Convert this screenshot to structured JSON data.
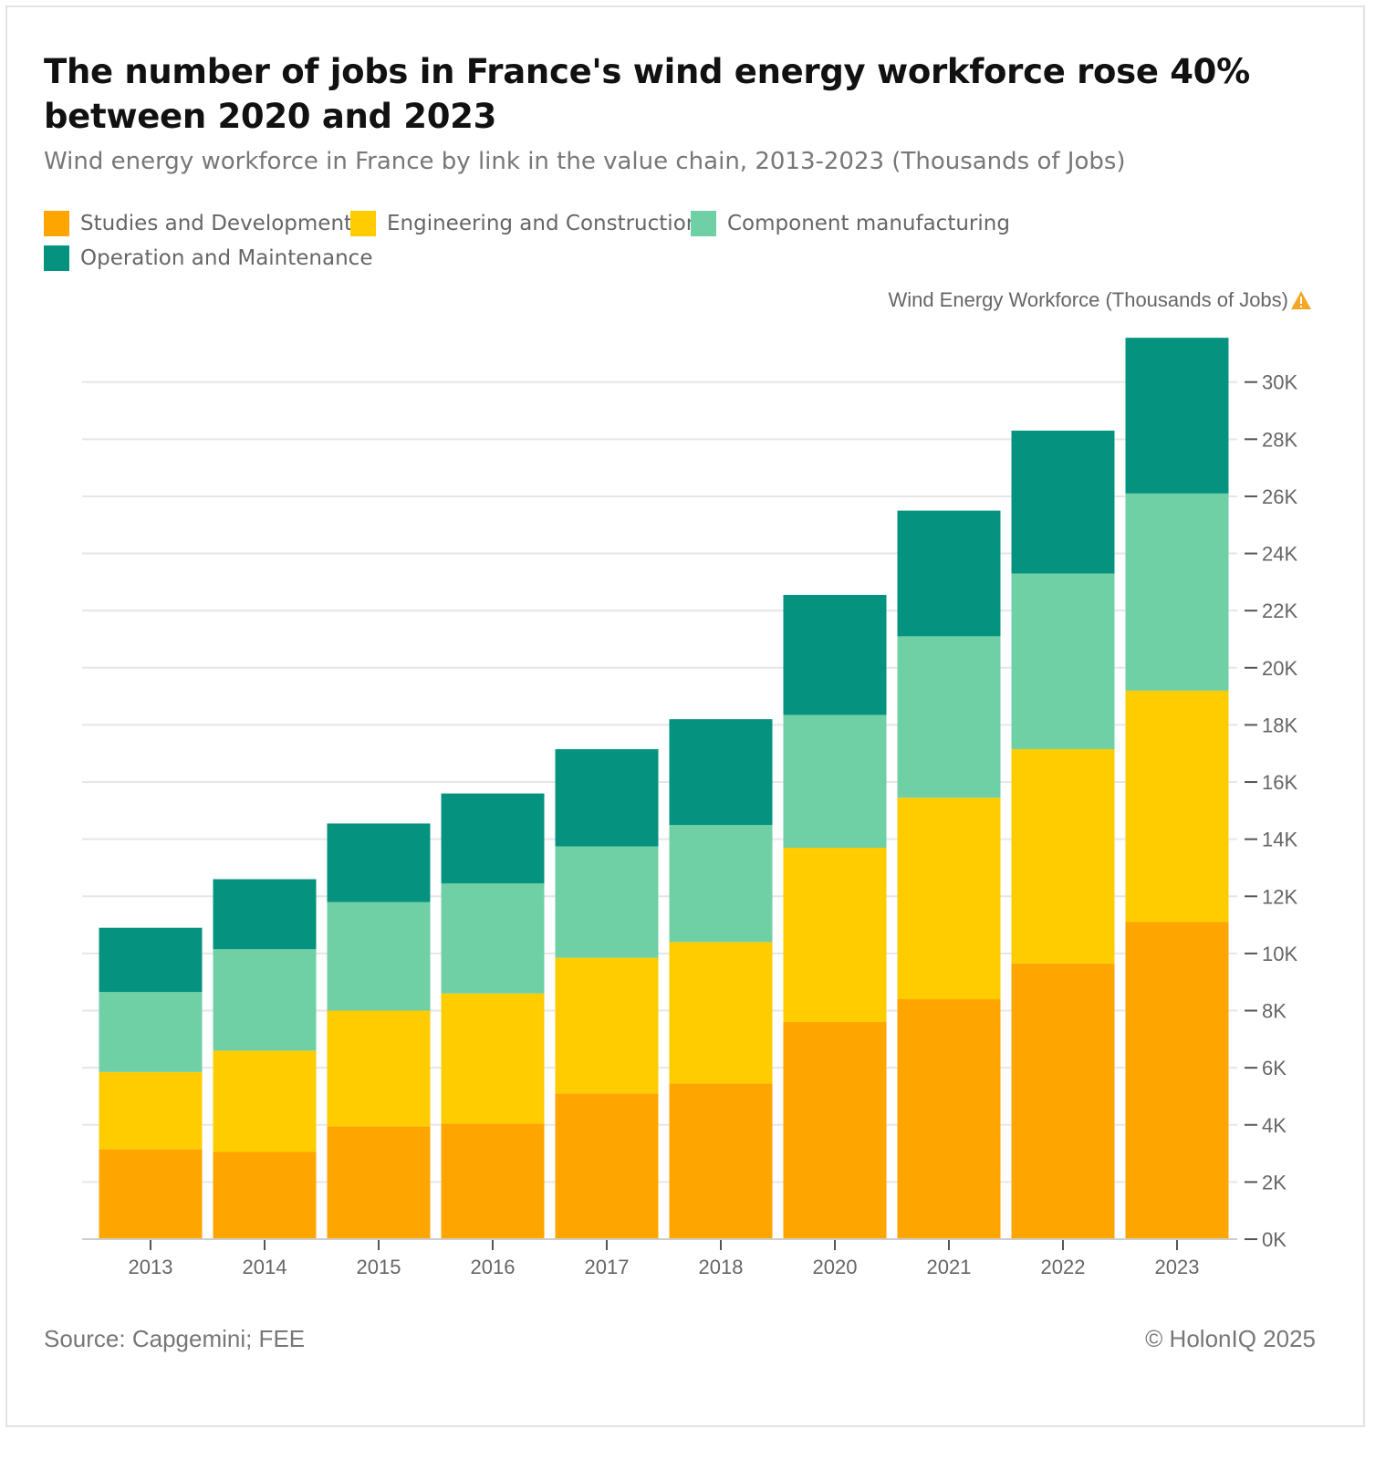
{
  "title": "The number of jobs in France's wind energy workforce rose 40% between 2020 and 2023",
  "subtitle": "Wind energy workforce in France by link in the value chain, 2013-2023 (Thousands of Jobs)",
  "axis_title": "Wind Energy Workforce (Thousands of Jobs)",
  "footer": {
    "source": "Source: Capgemini; FEE",
    "copyright": "© HolonIQ 2025"
  },
  "chart_data": {
    "type": "bar",
    "stacked": true,
    "title": "The number of jobs in France's wind energy workforce rose 40% between 2020 and 2023",
    "subtitle": "Wind energy workforce in France by link in the value chain, 2013-2023 (Thousands of Jobs)",
    "ylabel": "Wind Energy Workforce (Thousands of Jobs)",
    "xlabel": "",
    "ylim": [
      0,
      31500
    ],
    "y_axis_position": "right",
    "yticks": [
      0,
      2000,
      4000,
      6000,
      8000,
      10000,
      12000,
      14000,
      16000,
      18000,
      20000,
      22000,
      24000,
      26000,
      28000,
      30000
    ],
    "ytick_labels": [
      "0K",
      "2K",
      "4K",
      "6K",
      "8K",
      "10K",
      "12K",
      "14K",
      "16K",
      "18K",
      "20K",
      "22K",
      "24K",
      "26K",
      "28K",
      "30K"
    ],
    "grid": true,
    "legend_position": "top-left",
    "categories": [
      "2013",
      "2014",
      "2015",
      "2016",
      "2017",
      "2018",
      "2020",
      "2021",
      "2022",
      "2023"
    ],
    "series": [
      {
        "name": "Studies and Development",
        "color": "#FFA500",
        "values": [
          3150,
          3050,
          3950,
          4050,
          5100,
          5450,
          7600,
          8400,
          9650,
          11100
        ]
      },
      {
        "name": "Engineering and Construction",
        "color": "#FFCC00",
        "values": [
          2700,
          3550,
          4050,
          4550,
          4750,
          4950,
          6100,
          7050,
          7500,
          8100
        ]
      },
      {
        "name": "Component manufacturing",
        "color": "#6FCFA5",
        "values": [
          2800,
          3550,
          3800,
          3850,
          3900,
          4100,
          4650,
          5650,
          6150,
          6900
        ]
      },
      {
        "name": "Operation and Maintenance",
        "color": "#05937F",
        "values": [
          2250,
          2450,
          2750,
          3150,
          3400,
          3700,
          4200,
          4400,
          5000,
          5450
        ]
      }
    ]
  }
}
